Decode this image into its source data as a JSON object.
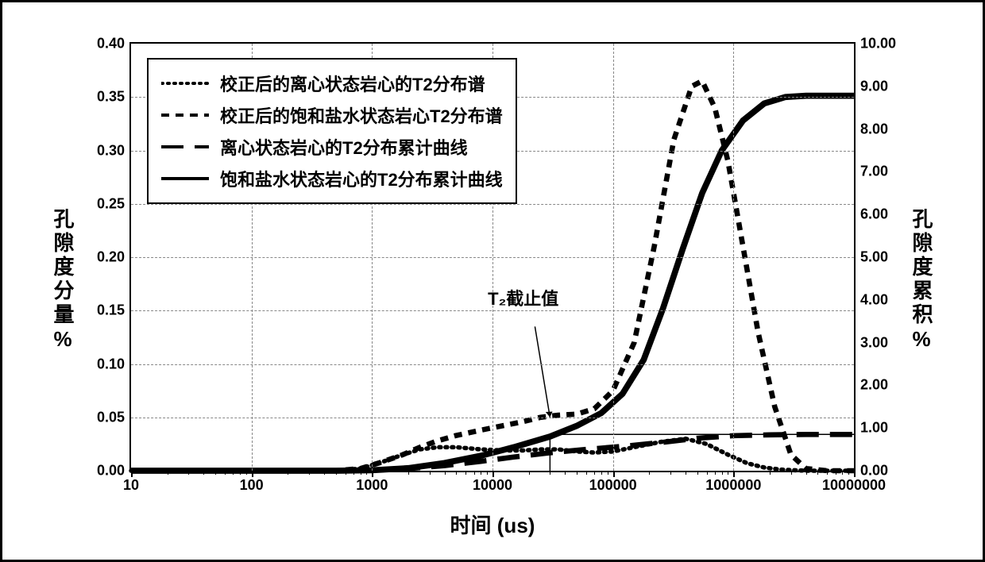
{
  "chart": {
    "type": "line",
    "background_color": "#ffffff",
    "border_color": "#000000",
    "grid_color": "#888888",
    "xlabel": "时间 (us)",
    "ylabel_left": "孔隙度分量%",
    "ylabel_right": "孔隙度累积%",
    "label_fontsize": 26,
    "tick_fontsize": 18,
    "x_scale": "log",
    "xlim": [
      10,
      10000000
    ],
    "xticks": [
      10,
      100,
      1000,
      10000,
      100000,
      1000000,
      10000000
    ],
    "xtick_labels": [
      "10",
      "100",
      "1000",
      "10000",
      "100000",
      "1000000",
      "10000000"
    ],
    "y_left_lim": [
      0.0,
      0.4
    ],
    "y_left_ticks": [
      0.0,
      0.05,
      0.1,
      0.15,
      0.2,
      0.25,
      0.3,
      0.35,
      0.4
    ],
    "y_left_tick_labels": [
      "0.00",
      "0.05",
      "0.10",
      "0.15",
      "0.20",
      "0.25",
      "0.30",
      "0.35",
      "0.40"
    ],
    "y_right_lim": [
      0.0,
      10.0
    ],
    "y_right_ticks": [
      0.0,
      1.0,
      2.0,
      3.0,
      4.0,
      5.0,
      6.0,
      7.0,
      8.0,
      9.0,
      10.0
    ],
    "y_right_tick_labels": [
      "0.00",
      "1.00",
      "2.00",
      "3.00",
      "4.00",
      "5.00",
      "6.00",
      "7.00",
      "8.00",
      "9.00",
      "10.00"
    ],
    "legend": {
      "position": "upper-left",
      "items": [
        {
          "label": "校正后的离心状态岩心的T2分布谱",
          "dash": "dot",
          "width": 3,
          "axis": "left"
        },
        {
          "label": "校正后的饱和盐水状态岩心T2分布谱",
          "dash": "short-dash",
          "width": 3,
          "axis": "left"
        },
        {
          "label": "离心状态岩心的T2分布累计曲线",
          "dash": "long-dash",
          "width": 3,
          "axis": "right"
        },
        {
          "label": "饱和盐水状态岩心的T2分布累计曲线",
          "dash": "solid",
          "width": 3,
          "axis": "right"
        }
      ]
    },
    "annotation": {
      "text": "T₂截止值",
      "x": 30000,
      "arrow_to_y_left": 0.05
    },
    "cutoff_marker": {
      "x": 30000,
      "y_right": 0.85
    },
    "series": [
      {
        "name": "centrifuge_t2_spectrum",
        "axis": "left",
        "dash": "dot",
        "color": "#000000",
        "width": 2.5,
        "points": [
          [
            10,
            0
          ],
          [
            100,
            0
          ],
          [
            500,
            0
          ],
          [
            800,
            0.002
          ],
          [
            1200,
            0.008
          ],
          [
            1800,
            0.015
          ],
          [
            2500,
            0.02
          ],
          [
            3500,
            0.022
          ],
          [
            5000,
            0.022
          ],
          [
            8000,
            0.02
          ],
          [
            12000,
            0.019
          ],
          [
            18000,
            0.019
          ],
          [
            25000,
            0.02
          ],
          [
            35000,
            0.02
          ],
          [
            50000,
            0.018
          ],
          [
            70000,
            0.017
          ],
          [
            100000,
            0.018
          ],
          [
            150000,
            0.022
          ],
          [
            250000,
            0.027
          ],
          [
            400000,
            0.03
          ],
          [
            600000,
            0.025
          ],
          [
            900000,
            0.015
          ],
          [
            1300000,
            0.007
          ],
          [
            1800000,
            0.003
          ],
          [
            2500000,
            0.001
          ],
          [
            4000000,
            0
          ],
          [
            10000000,
            0
          ]
        ]
      },
      {
        "name": "saturated_t2_spectrum",
        "axis": "left",
        "dash": "short-dash",
        "color": "#000000",
        "width": 3,
        "points": [
          [
            10,
            0
          ],
          [
            100,
            0
          ],
          [
            500,
            0
          ],
          [
            800,
            0.002
          ],
          [
            1200,
            0.008
          ],
          [
            1800,
            0.015
          ],
          [
            2500,
            0.022
          ],
          [
            3500,
            0.028
          ],
          [
            5000,
            0.033
          ],
          [
            8000,
            0.038
          ],
          [
            12000,
            0.042
          ],
          [
            18000,
            0.046
          ],
          [
            25000,
            0.05
          ],
          [
            35000,
            0.052
          ],
          [
            50000,
            0.053
          ],
          [
            70000,
            0.058
          ],
          [
            100000,
            0.075
          ],
          [
            150000,
            0.12
          ],
          [
            220000,
            0.21
          ],
          [
            320000,
            0.31
          ],
          [
            450000,
            0.36
          ],
          [
            550000,
            0.365
          ],
          [
            700000,
            0.34
          ],
          [
            900000,
            0.29
          ],
          [
            1200000,
            0.21
          ],
          [
            1600000,
            0.13
          ],
          [
            2200000,
            0.06
          ],
          [
            3000000,
            0.015
          ],
          [
            4000000,
            0.002
          ],
          [
            6000000,
            0
          ],
          [
            10000000,
            0
          ]
        ]
      },
      {
        "name": "centrifuge_cumulative",
        "axis": "right",
        "dash": "long-dash",
        "color": "#000000",
        "width": 3,
        "points": [
          [
            10,
            0
          ],
          [
            500,
            0
          ],
          [
            1000,
            0.01
          ],
          [
            2000,
            0.05
          ],
          [
            4000,
            0.12
          ],
          [
            8000,
            0.22
          ],
          [
            15000,
            0.32
          ],
          [
            30000,
            0.42
          ],
          [
            60000,
            0.5
          ],
          [
            120000,
            0.57
          ],
          [
            250000,
            0.66
          ],
          [
            500000,
            0.76
          ],
          [
            1000000,
            0.82
          ],
          [
            2000000,
            0.84
          ],
          [
            4000000,
            0.85
          ],
          [
            10000000,
            0.85
          ]
        ]
      },
      {
        "name": "saturated_cumulative",
        "axis": "right",
        "dash": "solid",
        "color": "#000000",
        "width": 3.5,
        "points": [
          [
            10,
            0
          ],
          [
            500,
            0
          ],
          [
            1000,
            0.01
          ],
          [
            2000,
            0.06
          ],
          [
            4000,
            0.18
          ],
          [
            8000,
            0.35
          ],
          [
            15000,
            0.55
          ],
          [
            30000,
            0.8
          ],
          [
            50000,
            1.05
          ],
          [
            80000,
            1.35
          ],
          [
            120000,
            1.8
          ],
          [
            180000,
            2.6
          ],
          [
            260000,
            3.8
          ],
          [
            380000,
            5.2
          ],
          [
            550000,
            6.5
          ],
          [
            800000,
            7.5
          ],
          [
            1200000,
            8.2
          ],
          [
            1800000,
            8.6
          ],
          [
            2700000,
            8.75
          ],
          [
            4000000,
            8.78
          ],
          [
            10000000,
            8.78
          ]
        ]
      }
    ]
  }
}
